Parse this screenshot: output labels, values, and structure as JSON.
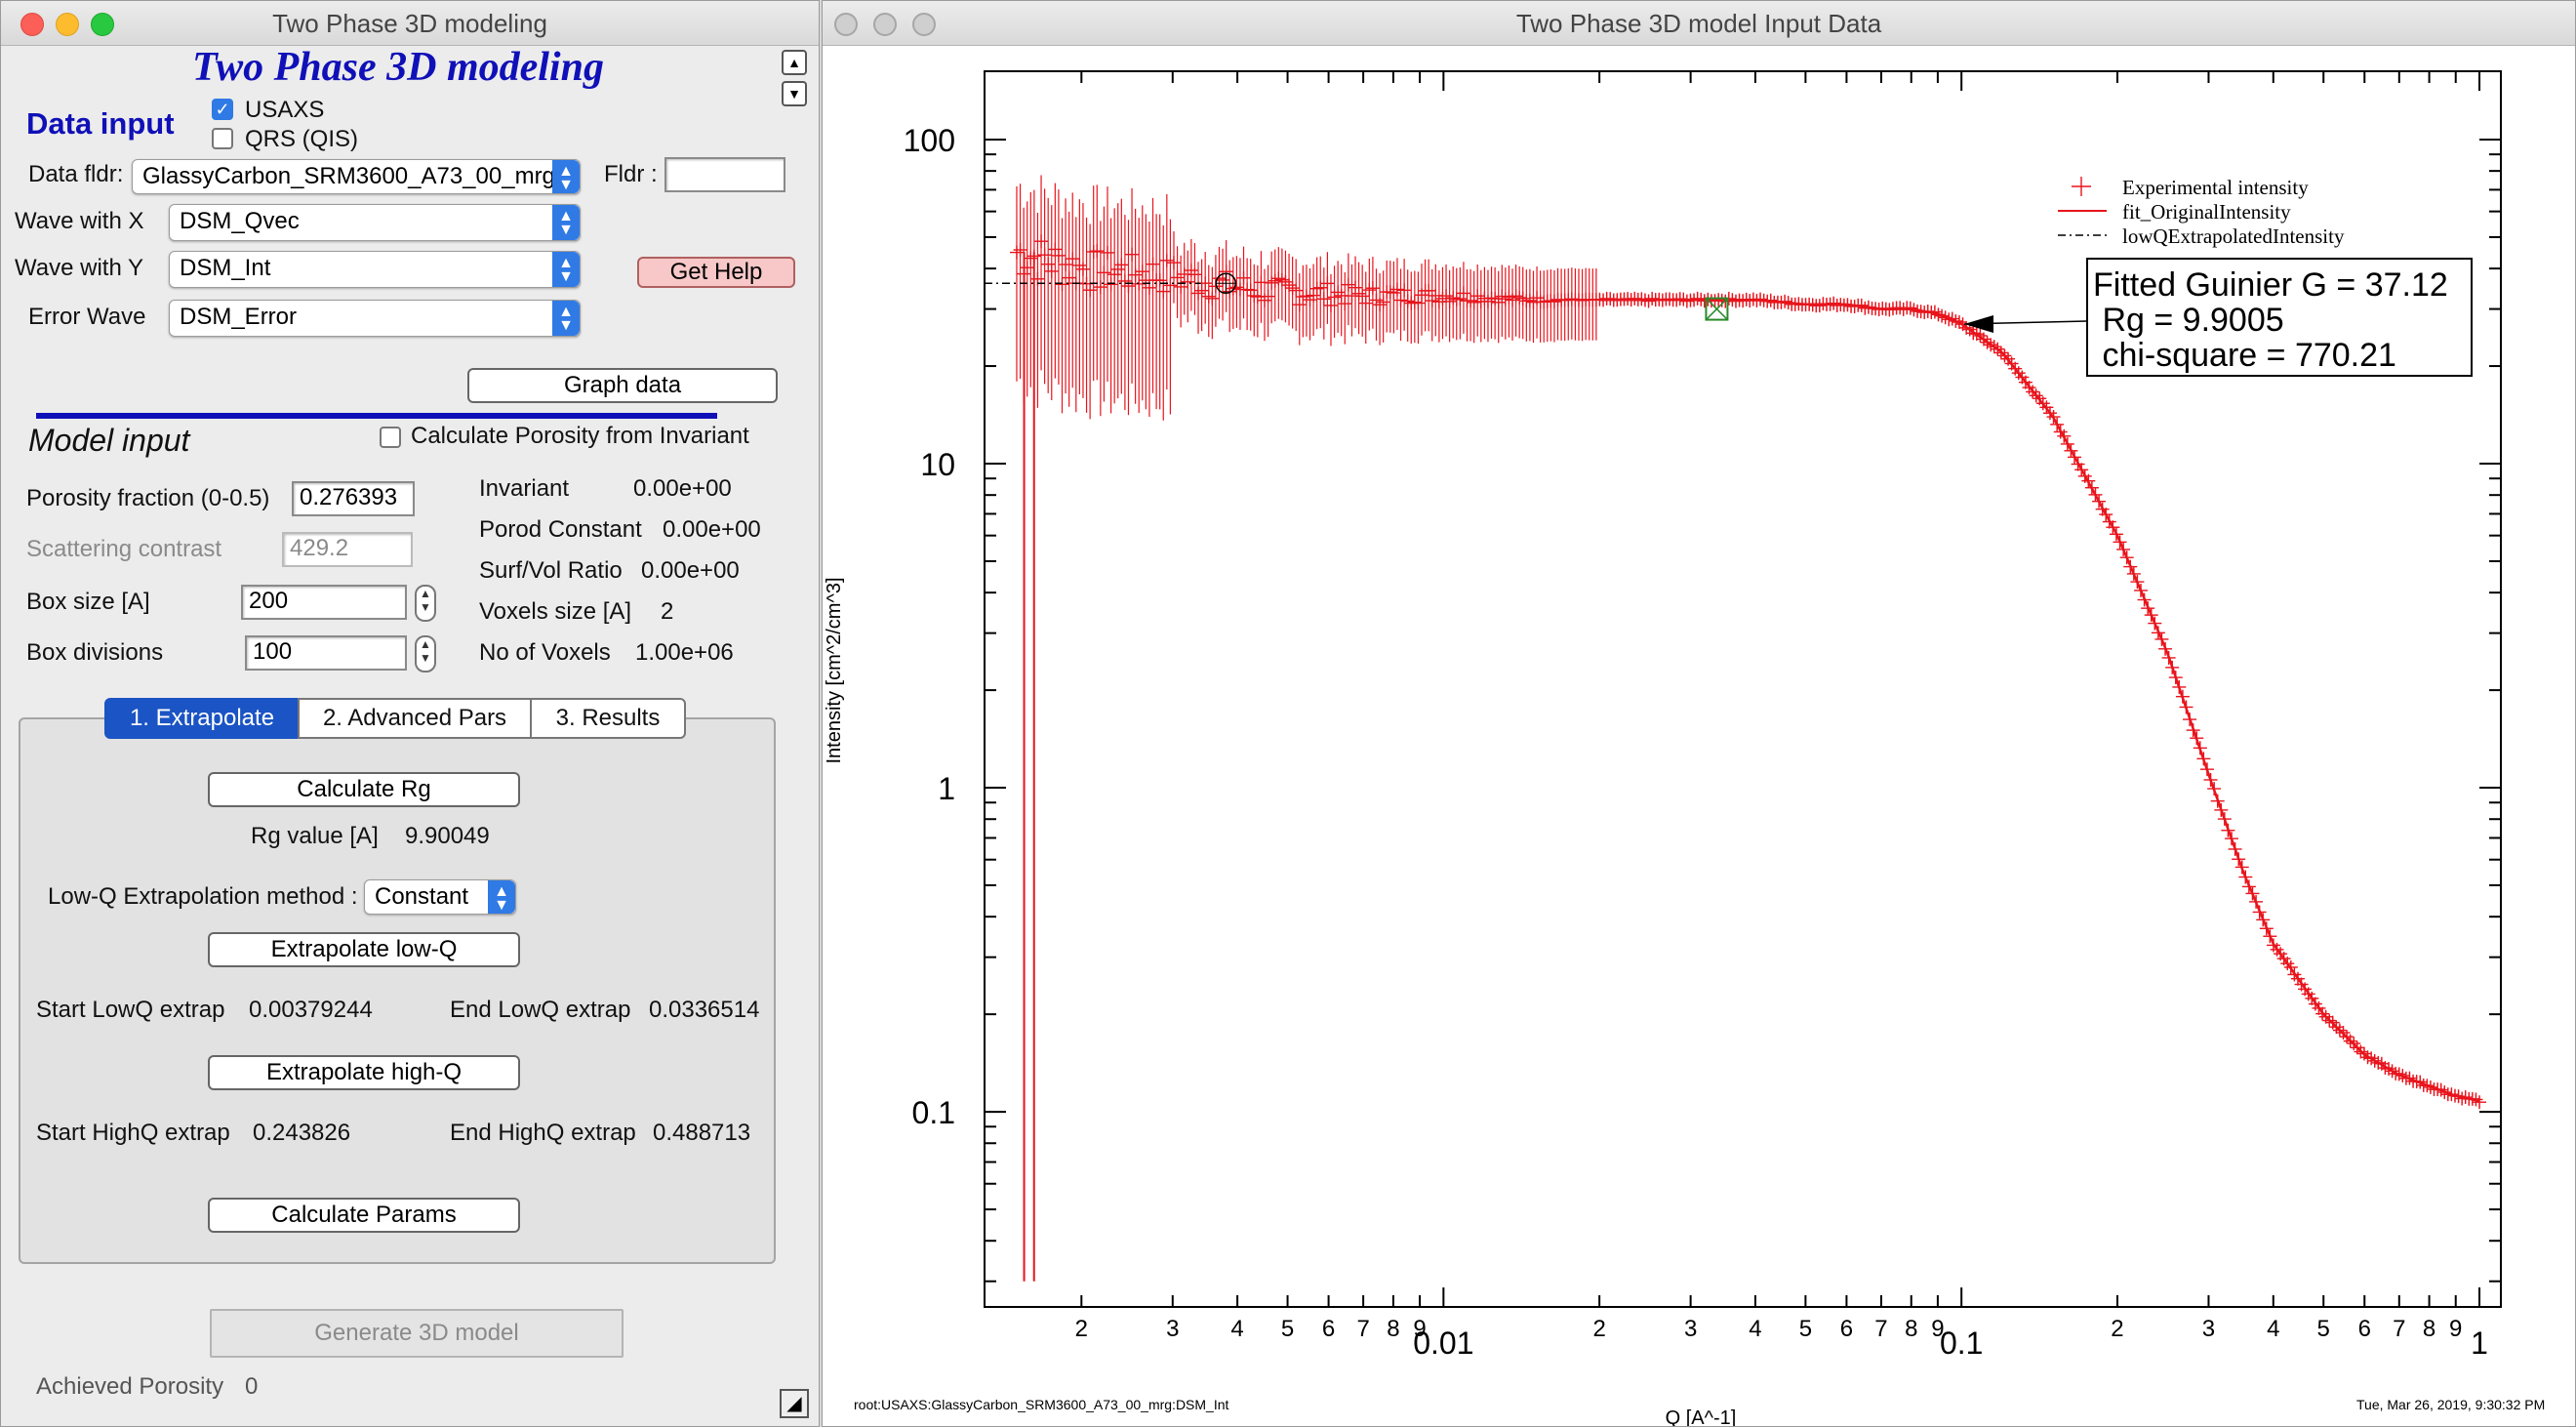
{
  "left_window": {
    "title": "Two Phase 3D modeling",
    "panel_title": "Two Phase 3D modeling",
    "data_input_heading": "Data input",
    "usaxs_label": "USAXS",
    "usaxs_checked": true,
    "qrs_label": "QRS (QIS)",
    "qrs_checked": false,
    "data_fldr_label": "Data fldr:",
    "data_fldr_value": "GlassyCarbon_SRM3600_A73_00_mrg",
    "fldr_label": "Fldr :",
    "fldr_value": "",
    "wave_x_label": "Wave with X",
    "wave_x_value": "DSM_Qvec",
    "wave_y_label": "Wave with Y",
    "wave_y_value": "DSM_Int",
    "error_wave_label": "Error Wave",
    "error_wave_value": "DSM_Error",
    "get_help_label": "Get Help",
    "graph_data_label": "Graph data",
    "model_input_heading": "Model input",
    "calc_porosity_label": "Calculate Porosity from Invariant",
    "calc_porosity_checked": false,
    "porosity_label": "Porosity fraction (0-0.5)",
    "porosity_value": "0.276393",
    "contrast_label": "Scattering contrast",
    "contrast_value": "429.2",
    "box_size_label": "Box size [A]",
    "box_size_value": "200",
    "box_div_label": "Box divisions",
    "box_div_value": "100",
    "invariant_label": "Invariant",
    "invariant_value": "0.00e+00",
    "porod_label": "Porod Constant",
    "porod_value": "0.00e+00",
    "surfvol_label": "Surf/Vol Ratio",
    "surfvol_value": "0.00e+00",
    "voxel_size_label": "Voxels size [A]",
    "voxel_size_value": "2",
    "no_voxels_label": "No of Voxels",
    "no_voxels_value": "1.00e+06",
    "tabs": [
      "1. Extrapolate",
      "2. Advanced Pars",
      "3. Results"
    ],
    "calc_rg_label": "Calculate Rg",
    "rg_value_label": "Rg value [A]",
    "rg_value": "9.90049",
    "lowq_method_label": "Low-Q Extrapolation method :",
    "lowq_method_value": "Constant",
    "extrap_lowq_label": "Extrapolate low-Q",
    "start_lowq_label": "Start LowQ extrap",
    "start_lowq_value": "0.00379244",
    "end_lowq_label": "End LowQ extrap",
    "end_lowq_value": "0.0336514",
    "extrap_highq_label": "Extrapolate high-Q",
    "start_highq_label": "Start HighQ extrap",
    "start_highq_value": "0.243826",
    "end_highq_label": "End HighQ extrap",
    "end_highq_value": "0.488713",
    "calc_params_label": "Calculate Params",
    "generate_label": "Generate 3D model",
    "achieved_label": "Achieved Porosity",
    "achieved_value": "0"
  },
  "right_window": {
    "title": "Two Phase 3D model Input Data",
    "footer_left": "root:USAXS:GlassyCarbon_SRM3600_A73_00_mrg:DSM_Int",
    "footer_right": "Tue, Mar 26, 2019, 9:30:32 PM",
    "annotation_line1": "Fitted Guinier G = 37.12",
    "annotation_line2": " Rg = 9.9005",
    "annotation_line3": " chi-square = 770.21"
  },
  "chart_data": {
    "type": "scatter",
    "xlabel": "Q [A^-1]",
    "ylabel": "Intensity [cm^2/cm^3]",
    "xscale": "log",
    "yscale": "log",
    "xlim": [
      0.0013,
      1.1
    ],
    "ylim": [
      0.025,
      200
    ],
    "x_major_ticks": [
      "0.01",
      "0.1",
      "1"
    ],
    "x_minor_labels": [
      "2",
      "3",
      "4",
      "5",
      "6",
      "7",
      "8",
      "9",
      "2",
      "3",
      "4",
      "5",
      "6",
      "7",
      "8",
      "9",
      "2",
      "3",
      "4",
      "5",
      "6",
      "7",
      "8",
      "9"
    ],
    "y_major_ticks": [
      "100",
      "10",
      "1",
      "0.1"
    ],
    "legend_position": "top-right",
    "color_experimental": "#e8141c",
    "series": [
      {
        "name": "Experimental intensity",
        "style": "cross-markers with error bars",
        "x": [
          0.0015,
          0.002,
          0.003,
          0.004,
          0.005,
          0.007,
          0.01,
          0.015,
          0.02,
          0.03,
          0.04,
          0.05,
          0.06,
          0.07,
          0.08,
          0.09,
          0.1,
          0.12,
          0.15,
          0.2,
          0.25,
          0.3,
          0.35,
          0.4,
          0.5,
          0.6,
          0.7,
          0.8,
          0.9,
          1.0
        ],
        "y": [
          45,
          40,
          38,
          35,
          34,
          33,
          33,
          32,
          32,
          32,
          32,
          31,
          31,
          30,
          30,
          29,
          27,
          22,
          14,
          6,
          2.6,
          1.1,
          0.55,
          0.33,
          0.2,
          0.15,
          0.13,
          0.12,
          0.112,
          0.108
        ]
      },
      {
        "name": "fit_OriginalIntensity",
        "style": "solid red line"
      },
      {
        "name": "lowQExtrapolatedIntensity",
        "style": "dash-dot black line",
        "x": [
          0.0013,
          0.0034
        ],
        "y": [
          36,
          36
        ]
      }
    ]
  }
}
